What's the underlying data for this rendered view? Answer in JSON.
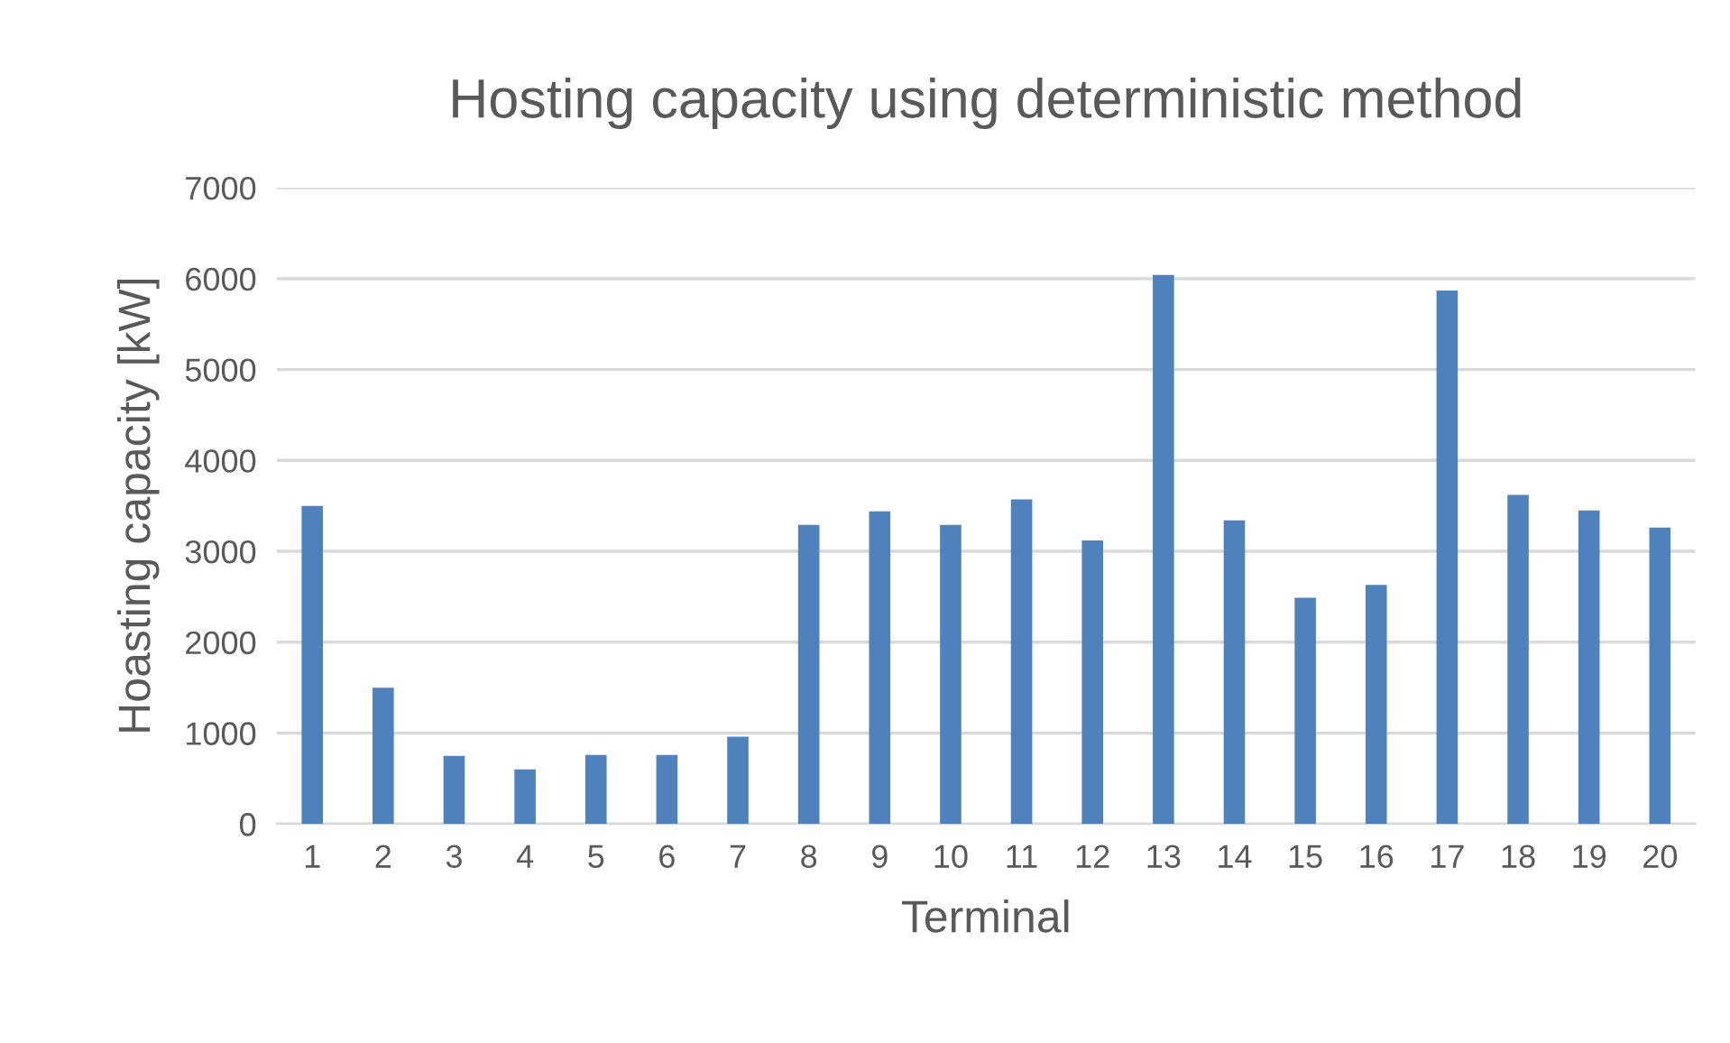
{
  "chart_data": {
    "type": "bar",
    "title": "Hosting capacity using deterministic method",
    "xlabel": "Terminal",
    "ylabel": "Hoasting capacity [kW]",
    "categories": [
      "1",
      "2",
      "3",
      "4",
      "5",
      "6",
      "7",
      "8",
      "9",
      "10",
      "11",
      "12",
      "13",
      "14",
      "15",
      "16",
      "17",
      "18",
      "19",
      "20"
    ],
    "values": [
      3500,
      1500,
      750,
      600,
      760,
      760,
      960,
      3290,
      3440,
      3290,
      3570,
      3120,
      6040,
      3340,
      2490,
      2630,
      5870,
      3620,
      3450,
      3260
    ],
    "color": "#4f81bd",
    "ylim": [
      0,
      7000
    ],
    "yticks": [
      0,
      1000,
      2000,
      3000,
      4000,
      5000,
      6000,
      7000
    ],
    "grid": "y"
  }
}
